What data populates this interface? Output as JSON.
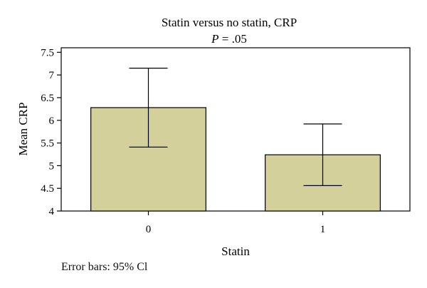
{
  "chart_data": {
    "type": "bar",
    "title": "Statin versus no statin, CRP",
    "subtitle_prefix": "P",
    "subtitle_value": " = .05",
    "xlabel": "Statin",
    "ylabel": "Mean CRP",
    "categories": [
      "0",
      "1"
    ],
    "values": [
      6.28,
      5.24
    ],
    "error_low": [
      5.41,
      4.56
    ],
    "error_high": [
      7.15,
      5.92
    ],
    "ylim": [
      4,
      7.6
    ],
    "yticks": [
      4,
      4.5,
      5,
      5.5,
      6,
      6.5,
      7,
      7.5
    ],
    "ytick_labels": [
      "4",
      "4.5",
      "5",
      "5.5",
      "6",
      "6.5",
      "7",
      "7.5"
    ],
    "bar_color": "#d4d09b",
    "grid": false,
    "note": "Error bars: 95% Cl"
  }
}
